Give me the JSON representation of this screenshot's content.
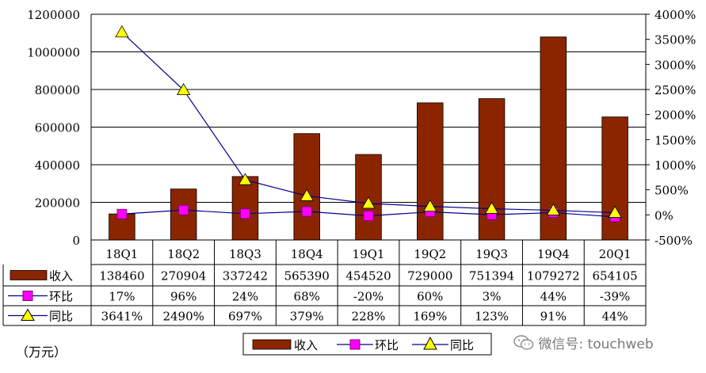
{
  "chart_data": {
    "type": "bar",
    "categories": [
      "18Q1",
      "18Q2",
      "18Q3",
      "18Q4",
      "19Q1",
      "19Q2",
      "19Q3",
      "19Q4",
      "20Q1"
    ],
    "series": [
      {
        "name": "收入",
        "type": "bar",
        "axis": "left",
        "color": "#8B2500",
        "values": [
          138460,
          270904,
          337242,
          565390,
          454520,
          729000,
          751394,
          1079272,
          654105
        ]
      },
      {
        "name": "环比",
        "type": "line",
        "axis": "right",
        "color": "#FF00FF",
        "line_color": "#00008B",
        "marker": "square",
        "values": [
          17,
          96,
          24,
          68,
          -20,
          60,
          3,
          44,
          -39
        ]
      },
      {
        "name": "同比",
        "type": "line",
        "axis": "right",
        "color": "#FFFF00",
        "line_color": "#00008B",
        "marker": "triangle",
        "values": [
          3641,
          2490,
          697,
          379,
          228,
          169,
          123,
          91,
          44
        ]
      }
    ],
    "table_text": {
      "收入": [
        "138460",
        "270904",
        "337242",
        "565390",
        "454520",
        "729000",
        "751394",
        "1079272",
        "654105"
      ],
      "环比": [
        "17%",
        "96%",
        "24%",
        "68%",
        "-20%",
        "60%",
        "3%",
        "44%",
        "-39%"
      ],
      "同比": [
        "3641%",
        "2490%",
        "697%",
        "379%",
        "228%",
        "169%",
        "123%",
        "91%",
        "44%"
      ]
    },
    "left_axis": {
      "ylim": [
        0,
        1200000
      ],
      "ticks": [
        "0",
        "200000",
        "400000",
        "600000",
        "800000",
        "1000000",
        "1200000"
      ]
    },
    "right_axis": {
      "ylim": [
        -500,
        4000
      ],
      "ticks": [
        "-500%",
        "0%",
        "500%",
        "1000%",
        "1500%",
        "2000%",
        "2500%",
        "3000%",
        "3500%",
        "4000%"
      ]
    },
    "grid": true,
    "legend_position": "bottom",
    "unit_label": "（万元）"
  },
  "watermark": "微信号: touchweb",
  "watermark_icon": "wechat-icon"
}
